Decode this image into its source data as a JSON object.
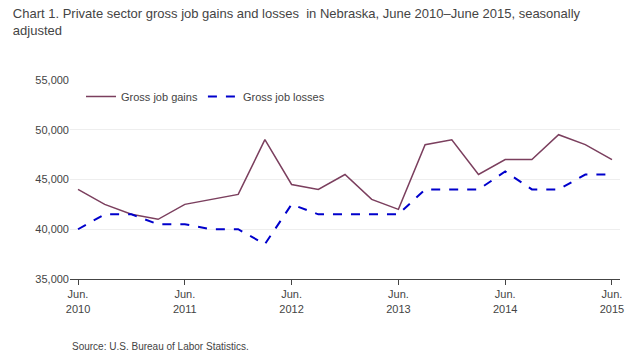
{
  "chart_data": {
    "type": "line",
    "title": "Chart 1. Private sector gross job gains and losses  in Nebraska, June 2010–June 2015, seasonally\nadjusted",
    "annotations": [
      "Source: U.S. Bureau of Labor Statistics."
    ],
    "categories": [
      "Jun.\n2010",
      null,
      null,
      null,
      "Jun.\n2011",
      null,
      null,
      null,
      "Jun.\n2012",
      null,
      null,
      null,
      "Jun.\n2013",
      null,
      null,
      null,
      "Jun.\n2014",
      null,
      null,
      null,
      "Jun.\n2015"
    ],
    "series": [
      {
        "name": "Gross job gains",
        "color": "#7B3F5E",
        "line_style": "solid",
        "values": [
          44000,
          42500,
          41500,
          41000,
          42500,
          43000,
          43500,
          49000,
          44500,
          44000,
          45500,
          43000,
          42000,
          48500,
          49000,
          45500,
          47000,
          47000,
          49500,
          48500,
          47000
        ]
      },
      {
        "name": "Gross job losses",
        "color": "#0000CC",
        "line_style": "dashed",
        "values": [
          40000,
          41500,
          41500,
          40500,
          40500,
          40000,
          40000,
          38500,
          42500,
          41500,
          41500,
          41500,
          41500,
          44000,
          44000,
          44000,
          45800,
          44000,
          44000,
          45500,
          45500
        ]
      }
    ],
    "ylim": [
      35000,
      55000
    ],
    "yticks": [
      {
        "value": 35000,
        "label": "35,000"
      },
      {
        "value": 40000,
        "label": "40,000"
      },
      {
        "value": 45000,
        "label": "45,000"
      },
      {
        "value": 50000,
        "label": "50,000"
      },
      {
        "value": 55000,
        "label": "55,000"
      }
    ],
    "grid": "y",
    "legend": "upper left"
  }
}
